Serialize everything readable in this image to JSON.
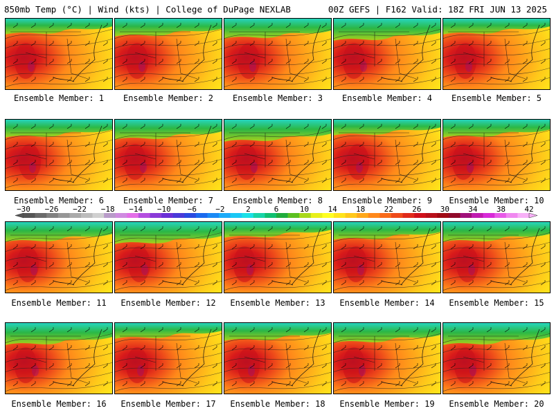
{
  "header": {
    "left": "850mb Temp (°C) | Wind (kts) | College of DuPage NEXLAB",
    "right": "00Z GEFS | F162 Valid: 18Z FRI JUN 13 2025"
  },
  "member_label_prefix": "Ensemble Member: ",
  "members": [
    "1",
    "2",
    "3",
    "4",
    "5",
    "6",
    "7",
    "8",
    "9",
    "10",
    "11",
    "12",
    "13",
    "14",
    "15",
    "16",
    "17",
    "18",
    "19",
    "20"
  ],
  "colorbar": {
    "labels": [
      "−30",
      "−26",
      "−22",
      "−18",
      "−14",
      "−10",
      "−6",
      "−2",
      "2",
      "6",
      "10",
      "14",
      "18",
      "22",
      "26",
      "30",
      "34",
      "38",
      "42"
    ],
    "colors": [
      "#555555",
      "#6a6a6a",
      "#808080",
      "#969696",
      "#aaaaaa",
      "#bcbcbc",
      "#d0d0d0",
      "#b89bc9",
      "#cf8be0",
      "#e36ee8",
      "#b44ee0",
      "#8a3ad8",
      "#6a2fd6",
      "#4a3ad8",
      "#2a4ae0",
      "#1a6aee",
      "#1a8af5",
      "#1aaaf8",
      "#1ac8f5",
      "#1ae0e6",
      "#18d4a8",
      "#10c070",
      "#20ac3c",
      "#5cc020",
      "#a8d81a",
      "#e8f01a",
      "#ffff22",
      "#ffe41a",
      "#ffc81a",
      "#ffa81a",
      "#ff881a",
      "#f86a1a",
      "#ee4a1a",
      "#e02a1a",
      "#d0101a",
      "#b8101a",
      "#a00a14",
      "#900a2a",
      "#a0107a",
      "#c01ab0",
      "#d82ad8",
      "#e85ae8",
      "#f088f0",
      "#f8b0f8"
    ]
  }
}
